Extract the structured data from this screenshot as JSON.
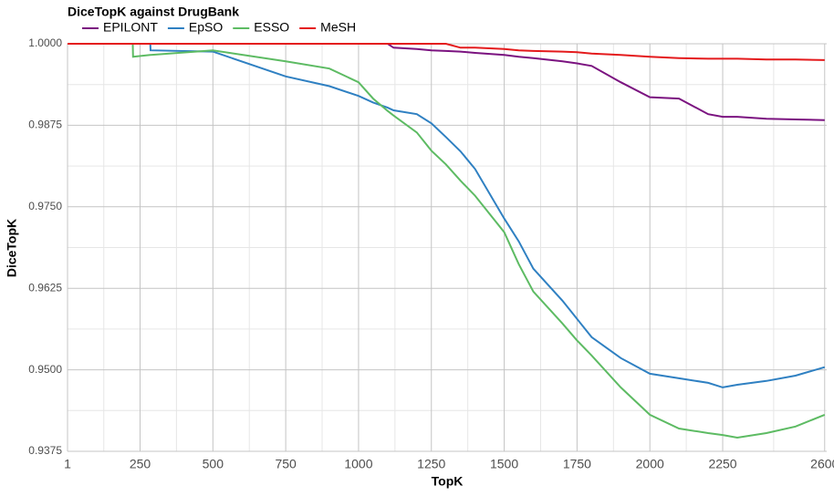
{
  "chart_data": {
    "type": "line",
    "title": "DiceTopK against DrugBank",
    "x_label": "TopK",
    "y_label": "DiceTopK",
    "x": [
      1,
      225,
      226,
      285,
      286,
      500,
      750,
      900,
      1000,
      1050,
      1100,
      1120,
      1200,
      1250,
      1300,
      1350,
      1400,
      1500,
      1550,
      1600,
      1700,
      1750,
      1800,
      1900,
      2000,
      2100,
      2200,
      2250,
      2300,
      2400,
      2500,
      2600
    ],
    "series": [
      {
        "name": "EPILONT",
        "color": "#7b1380",
        "values": [
          1,
          1,
          1,
          1,
          1,
          1,
          1,
          1,
          1,
          1,
          1,
          0.9994,
          0.9992,
          0.999,
          0.9989,
          0.9988,
          0.9986,
          0.9983,
          0.998,
          0.9978,
          0.9973,
          0.997,
          0.9966,
          0.9941,
          0.9918,
          0.9916,
          0.9892,
          0.9888,
          0.9888,
          0.9885,
          0.9884,
          0.9883
        ]
      },
      {
        "name": "EpSO",
        "color": "#2f80c2",
        "values": [
          1,
          1,
          1,
          1,
          0.999,
          0.9988,
          0.995,
          0.9935,
          0.992,
          0.991,
          0.9902,
          0.9898,
          0.9892,
          0.9878,
          0.9857,
          0.9835,
          0.9808,
          0.9732,
          0.9697,
          0.9655,
          0.9606,
          0.9578,
          0.955,
          0.9518,
          0.9494,
          0.9487,
          0.948,
          0.9473,
          0.9477,
          0.9483,
          0.9491,
          0.9504
        ]
      },
      {
        "name": "ESSO",
        "color": "#5dbb63",
        "values": [
          1,
          1,
          0.998,
          0.9983,
          0.9983,
          0.999,
          0.9973,
          0.9962,
          0.9941,
          0.9916,
          0.9897,
          0.989,
          0.9864,
          0.9836,
          0.9815,
          0.979,
          0.9767,
          0.9711,
          0.9662,
          0.962,
          0.9571,
          0.9545,
          0.9522,
          0.9473,
          0.9431,
          0.941,
          0.9403,
          0.94,
          0.9396,
          0.9403,
          0.9413,
          0.9431
        ]
      },
      {
        "name": "MeSH",
        "color": "#e41a1c",
        "values": [
          1,
          1,
          1,
          1,
          1,
          1,
          1,
          1,
          1,
          1,
          1,
          1,
          1,
          1,
          1,
          0.9994,
          0.9994,
          0.9992,
          0.999,
          0.9989,
          0.9988,
          0.9987,
          0.9985,
          0.9983,
          0.998,
          0.9978,
          0.9977,
          0.9977,
          0.9977,
          0.9976,
          0.9976,
          0.9975
        ]
      }
    ],
    "xlim": [
      1,
      2607
    ],
    "xticks": [
      1,
      250,
      500,
      750,
      1000,
      1250,
      1500,
      1750,
      2000,
      2250,
      2600
    ],
    "ylim": [
      0.9375,
      1.0
    ],
    "yticks": [
      0.9375,
      {
        "value": 0.95,
        "label": "0.9500"
      },
      0.9625,
      {
        "value": 0.975,
        "label": "0.9750"
      },
      0.9875,
      {
        "value": 1.0,
        "label": "1.0000"
      }
    ],
    "grid": true,
    "legend": "top"
  }
}
